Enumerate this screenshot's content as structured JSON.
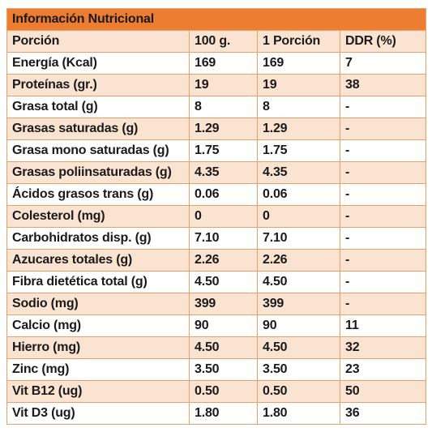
{
  "title": "Información Nutricional",
  "columns": [
    "Porción",
    "100 g.",
    "1 Porción",
    "DDR (%)"
  ],
  "rows": [
    [
      "Energía (Kcal)",
      "169",
      "169",
      "7"
    ],
    [
      "Proteínas (gr.)",
      "19",
      "19",
      "38"
    ],
    [
      "Grasa total (g)",
      "8",
      "8",
      "-"
    ],
    [
      "Grasas saturadas (g)",
      "1.29",
      "1.29",
      "-"
    ],
    [
      "Grasa mono saturadas (g)",
      "1.75",
      "1.75",
      "-"
    ],
    [
      "Grasas poliinsaturadas (g)",
      "4.35",
      "4.35",
      "-"
    ],
    [
      "Ácidos grasos trans (g)",
      "0.06",
      "0.06",
      "-"
    ],
    [
      "Colesterol (mg)",
      "0",
      "0",
      "-"
    ],
    [
      "Carbohidratos disp. (g)",
      "7.10",
      "7.10",
      "-"
    ],
    [
      "Azucares totales (g)",
      "2.26",
      "2.26",
      "-"
    ],
    [
      "Fibra dietética total (g)",
      "4.50",
      "4.50",
      "-"
    ],
    [
      "Sodio (mg)",
      "399",
      "399",
      "-"
    ],
    [
      "Calcio (mg)",
      "90",
      "90",
      "11"
    ],
    [
      "Hierro (mg)",
      "4.50",
      "4.50",
      "32"
    ],
    [
      "Zinc (mg)",
      "3.50",
      "3.50",
      "23"
    ],
    [
      "Vit B12 (ug)",
      "0.50",
      "0.50",
      "50"
    ],
    [
      "Vit D3 (ug)",
      "1.80",
      "1.80",
      "36"
    ]
  ],
  "colors": {
    "title_bg": "#ed7d31",
    "band_bg": "#fbe3d2",
    "border": "#e8a06a"
  }
}
